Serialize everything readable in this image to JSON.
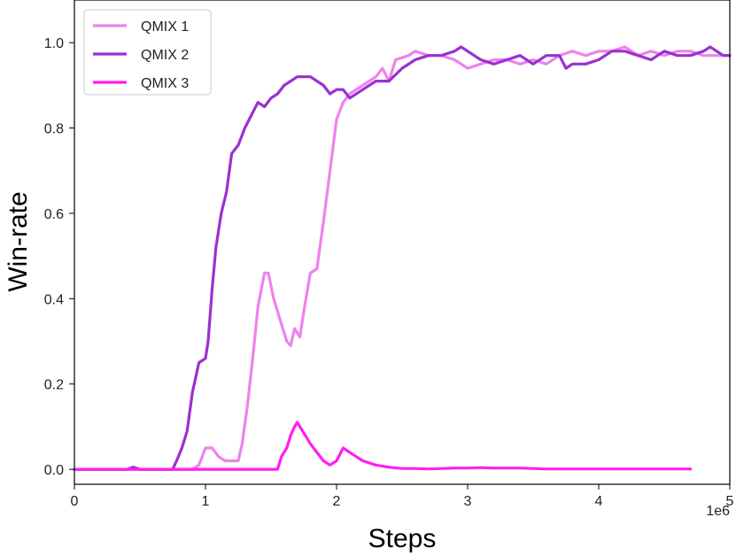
{
  "chart_data": {
    "type": "line",
    "xlabel": "Steps",
    "ylabel": "Win-rate",
    "x_offset_label": "1e6",
    "xlim": [
      0,
      5
    ],
    "ylim": [
      -0.035,
      1.1
    ],
    "xticks": [
      0,
      1,
      2,
      3,
      4,
      5
    ],
    "xtick_labels": [
      "0",
      "1",
      "2",
      "3",
      "4",
      "5"
    ],
    "yticks": [
      0.0,
      0.2,
      0.4,
      0.6,
      0.8,
      1.0
    ],
    "ytick_labels": [
      "0.0",
      "0.2",
      "0.4",
      "0.6",
      "0.8",
      "1.0"
    ],
    "grid": false,
    "legend_position": "top-left",
    "series": [
      {
        "name": "QMIX 1",
        "color": "#ee82ee",
        "points": [
          [
            0,
            0
          ],
          [
            0.9,
            0
          ],
          [
            0.95,
            0.01
          ],
          [
            1.0,
            0.05
          ],
          [
            1.05,
            0.05
          ],
          [
            1.1,
            0.03
          ],
          [
            1.15,
            0.02
          ],
          [
            1.2,
            0.02
          ],
          [
            1.25,
            0.02
          ],
          [
            1.28,
            0.06
          ],
          [
            1.32,
            0.15
          ],
          [
            1.36,
            0.26
          ],
          [
            1.4,
            0.38
          ],
          [
            1.45,
            0.46
          ],
          [
            1.48,
            0.46
          ],
          [
            1.52,
            0.4
          ],
          [
            1.58,
            0.34
          ],
          [
            1.62,
            0.3
          ],
          [
            1.65,
            0.29
          ],
          [
            1.68,
            0.33
          ],
          [
            1.72,
            0.31
          ],
          [
            1.75,
            0.37
          ],
          [
            1.8,
            0.46
          ],
          [
            1.85,
            0.47
          ],
          [
            1.9,
            0.58
          ],
          [
            1.95,
            0.7
          ],
          [
            2.0,
            0.82
          ],
          [
            2.05,
            0.86
          ],
          [
            2.1,
            0.88
          ],
          [
            2.2,
            0.9
          ],
          [
            2.3,
            0.92
          ],
          [
            2.35,
            0.94
          ],
          [
            2.4,
            0.91
          ],
          [
            2.45,
            0.96
          ],
          [
            2.55,
            0.97
          ],
          [
            2.6,
            0.98
          ],
          [
            2.7,
            0.97
          ],
          [
            2.8,
            0.97
          ],
          [
            2.9,
            0.96
          ],
          [
            3.0,
            0.94
          ],
          [
            3.1,
            0.95
          ],
          [
            3.2,
            0.96
          ],
          [
            3.3,
            0.96
          ],
          [
            3.4,
            0.95
          ],
          [
            3.5,
            0.96
          ],
          [
            3.6,
            0.95
          ],
          [
            3.7,
            0.97
          ],
          [
            3.8,
            0.98
          ],
          [
            3.9,
            0.97
          ],
          [
            4.0,
            0.98
          ],
          [
            4.1,
            0.98
          ],
          [
            4.2,
            0.99
          ],
          [
            4.3,
            0.97
          ],
          [
            4.4,
            0.98
          ],
          [
            4.5,
            0.97
          ],
          [
            4.6,
            0.98
          ],
          [
            4.7,
            0.98
          ],
          [
            4.8,
            0.97
          ],
          [
            4.9,
            0.97
          ],
          [
            5.0,
            0.97
          ]
        ]
      },
      {
        "name": "QMIX 2",
        "color": "#9b30d0",
        "points": [
          [
            0,
            0
          ],
          [
            0.4,
            0
          ],
          [
            0.45,
            0.005
          ],
          [
            0.5,
            0
          ],
          [
            0.6,
            0
          ],
          [
            0.75,
            0
          ],
          [
            0.78,
            0.02
          ],
          [
            0.82,
            0.05
          ],
          [
            0.86,
            0.09
          ],
          [
            0.9,
            0.18
          ],
          [
            0.95,
            0.25
          ],
          [
            1.0,
            0.26
          ],
          [
            1.02,
            0.3
          ],
          [
            1.05,
            0.42
          ],
          [
            1.08,
            0.52
          ],
          [
            1.12,
            0.6
          ],
          [
            1.16,
            0.65
          ],
          [
            1.2,
            0.74
          ],
          [
            1.25,
            0.76
          ],
          [
            1.3,
            0.8
          ],
          [
            1.35,
            0.83
          ],
          [
            1.4,
            0.86
          ],
          [
            1.45,
            0.85
          ],
          [
            1.5,
            0.87
          ],
          [
            1.55,
            0.88
          ],
          [
            1.6,
            0.9
          ],
          [
            1.65,
            0.91
          ],
          [
            1.7,
            0.92
          ],
          [
            1.75,
            0.92
          ],
          [
            1.8,
            0.92
          ],
          [
            1.85,
            0.91
          ],
          [
            1.9,
            0.9
          ],
          [
            1.95,
            0.88
          ],
          [
            2.0,
            0.89
          ],
          [
            2.05,
            0.89
          ],
          [
            2.1,
            0.87
          ],
          [
            2.15,
            0.88
          ],
          [
            2.2,
            0.89
          ],
          [
            2.3,
            0.91
          ],
          [
            2.4,
            0.91
          ],
          [
            2.5,
            0.94
          ],
          [
            2.6,
            0.96
          ],
          [
            2.7,
            0.97
          ],
          [
            2.8,
            0.97
          ],
          [
            2.9,
            0.98
          ],
          [
            2.95,
            0.99
          ],
          [
            3.0,
            0.98
          ],
          [
            3.05,
            0.97
          ],
          [
            3.1,
            0.96
          ],
          [
            3.2,
            0.95
          ],
          [
            3.3,
            0.96
          ],
          [
            3.4,
            0.97
          ],
          [
            3.5,
            0.95
          ],
          [
            3.6,
            0.97
          ],
          [
            3.7,
            0.97
          ],
          [
            3.75,
            0.94
          ],
          [
            3.8,
            0.95
          ],
          [
            3.9,
            0.95
          ],
          [
            4.0,
            0.96
          ],
          [
            4.1,
            0.98
          ],
          [
            4.2,
            0.98
          ],
          [
            4.3,
            0.97
          ],
          [
            4.4,
            0.96
          ],
          [
            4.5,
            0.98
          ],
          [
            4.6,
            0.97
          ],
          [
            4.7,
            0.97
          ],
          [
            4.8,
            0.98
          ],
          [
            4.85,
            0.99
          ],
          [
            4.9,
            0.98
          ],
          [
            4.95,
            0.97
          ],
          [
            5.0,
            0.97
          ]
        ]
      },
      {
        "name": "QMIX 3",
        "color": "#ff1eef",
        "points": [
          [
            0,
            0
          ],
          [
            1.5,
            0
          ],
          [
            1.55,
            0.0
          ],
          [
            1.58,
            0.03
          ],
          [
            1.62,
            0.05
          ],
          [
            1.65,
            0.08
          ],
          [
            1.68,
            0.1
          ],
          [
            1.7,
            0.11
          ],
          [
            1.72,
            0.1
          ],
          [
            1.76,
            0.08
          ],
          [
            1.8,
            0.06
          ],
          [
            1.85,
            0.04
          ],
          [
            1.9,
            0.02
          ],
          [
            1.95,
            0.01
          ],
          [
            2.0,
            0.02
          ],
          [
            2.05,
            0.05
          ],
          [
            2.1,
            0.04
          ],
          [
            2.15,
            0.03
          ],
          [
            2.2,
            0.02
          ],
          [
            2.3,
            0.01
          ],
          [
            2.4,
            0.005
          ],
          [
            2.5,
            0.002
          ],
          [
            2.6,
            0.002
          ],
          [
            2.7,
            0.001
          ],
          [
            2.8,
            0.002
          ],
          [
            2.9,
            0.003
          ],
          [
            3.0,
            0.003
          ],
          [
            3.1,
            0.004
          ],
          [
            3.2,
            0.003
          ],
          [
            3.3,
            0.003
          ],
          [
            3.4,
            0.003
          ],
          [
            3.5,
            0.002
          ],
          [
            3.6,
            0.001
          ],
          [
            3.8,
            0.001
          ],
          [
            4.0,
            0.001
          ],
          [
            4.2,
            0.001
          ],
          [
            4.4,
            0.001
          ],
          [
            4.6,
            0.001
          ],
          [
            4.7,
            0.001
          ]
        ]
      }
    ]
  }
}
